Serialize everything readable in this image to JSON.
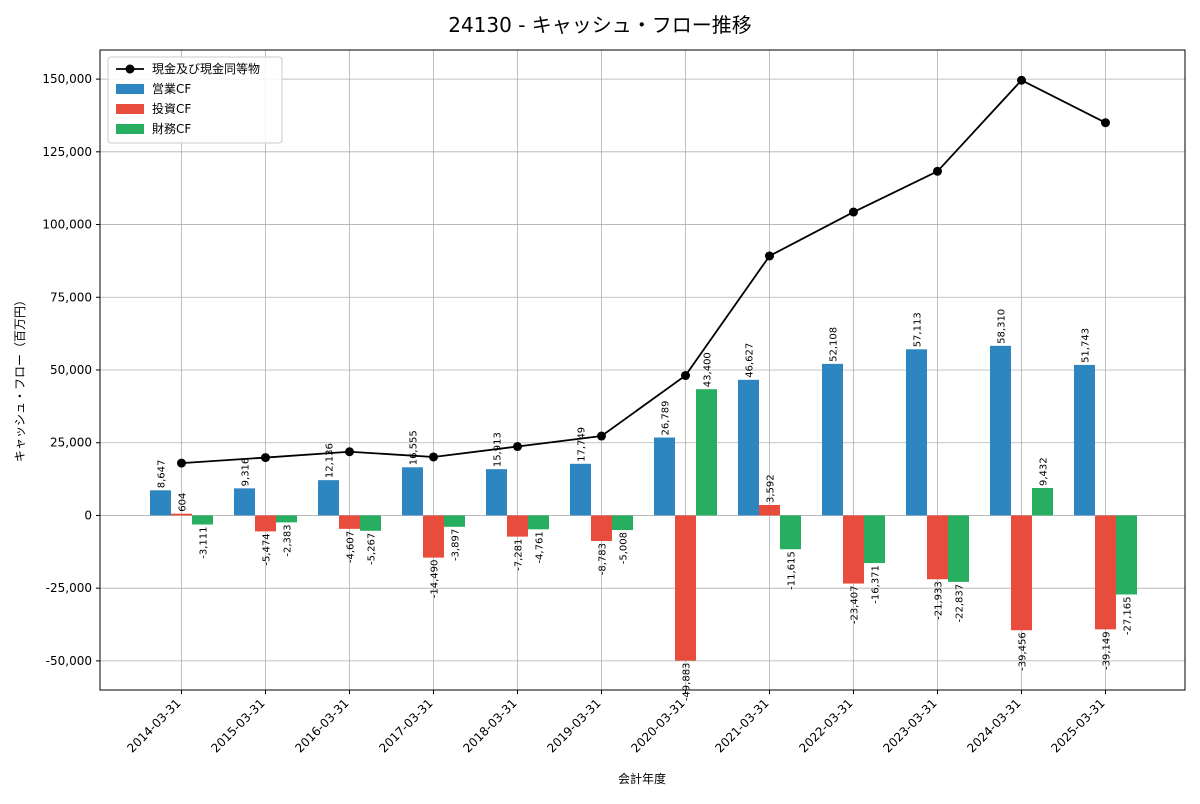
{
  "chart_data": {
    "type": "bar",
    "title": "24130 - キャッシュ・フロー推移",
    "xlabel": "会計年度",
    "ylabel": "キャッシュ・フロー（百万円）",
    "ylim": [
      -60000,
      160000
    ],
    "yticks": [
      -50000,
      -25000,
      0,
      25000,
      50000,
      75000,
      100000,
      125000,
      150000
    ],
    "grid": true,
    "legend_position": "top-left",
    "categories": [
      "2014-03-31",
      "2015-03-31",
      "2016-03-31",
      "2017-03-31",
      "2018-03-31",
      "2019-03-31",
      "2020-03-31",
      "2021-03-31",
      "2022-03-31",
      "2023-03-31",
      "2024-03-31",
      "2025-03-31"
    ],
    "series": [
      {
        "name": "営業CF",
        "type": "bar",
        "color": "#2e86c1",
        "values": [
          8647,
          9316,
          12136,
          16555,
          15913,
          17749,
          26789,
          46627,
          52108,
          57113,
          58310,
          51743
        ]
      },
      {
        "name": "投資CF",
        "type": "bar",
        "color": "#e74c3c",
        "values": [
          604,
          -5474,
          -4607,
          -14490,
          -7281,
          -8783,
          -49883,
          3592,
          -23407,
          -21933,
          -39456,
          -39149
        ]
      },
      {
        "name": "財務CF",
        "type": "bar",
        "color": "#27ae60",
        "values": [
          -3111,
          -2383,
          -5267,
          -3897,
          -4761,
          -5008,
          43400,
          -11615,
          -16371,
          -22837,
          9432,
          -27165
        ]
      },
      {
        "name": "現金及び現金同等物",
        "type": "line",
        "color": "#000000",
        "values": [
          18000,
          19900,
          21900,
          20100,
          23700,
          27300,
          48100,
          89200,
          104300,
          118300,
          149600,
          135000
        ]
      }
    ]
  }
}
